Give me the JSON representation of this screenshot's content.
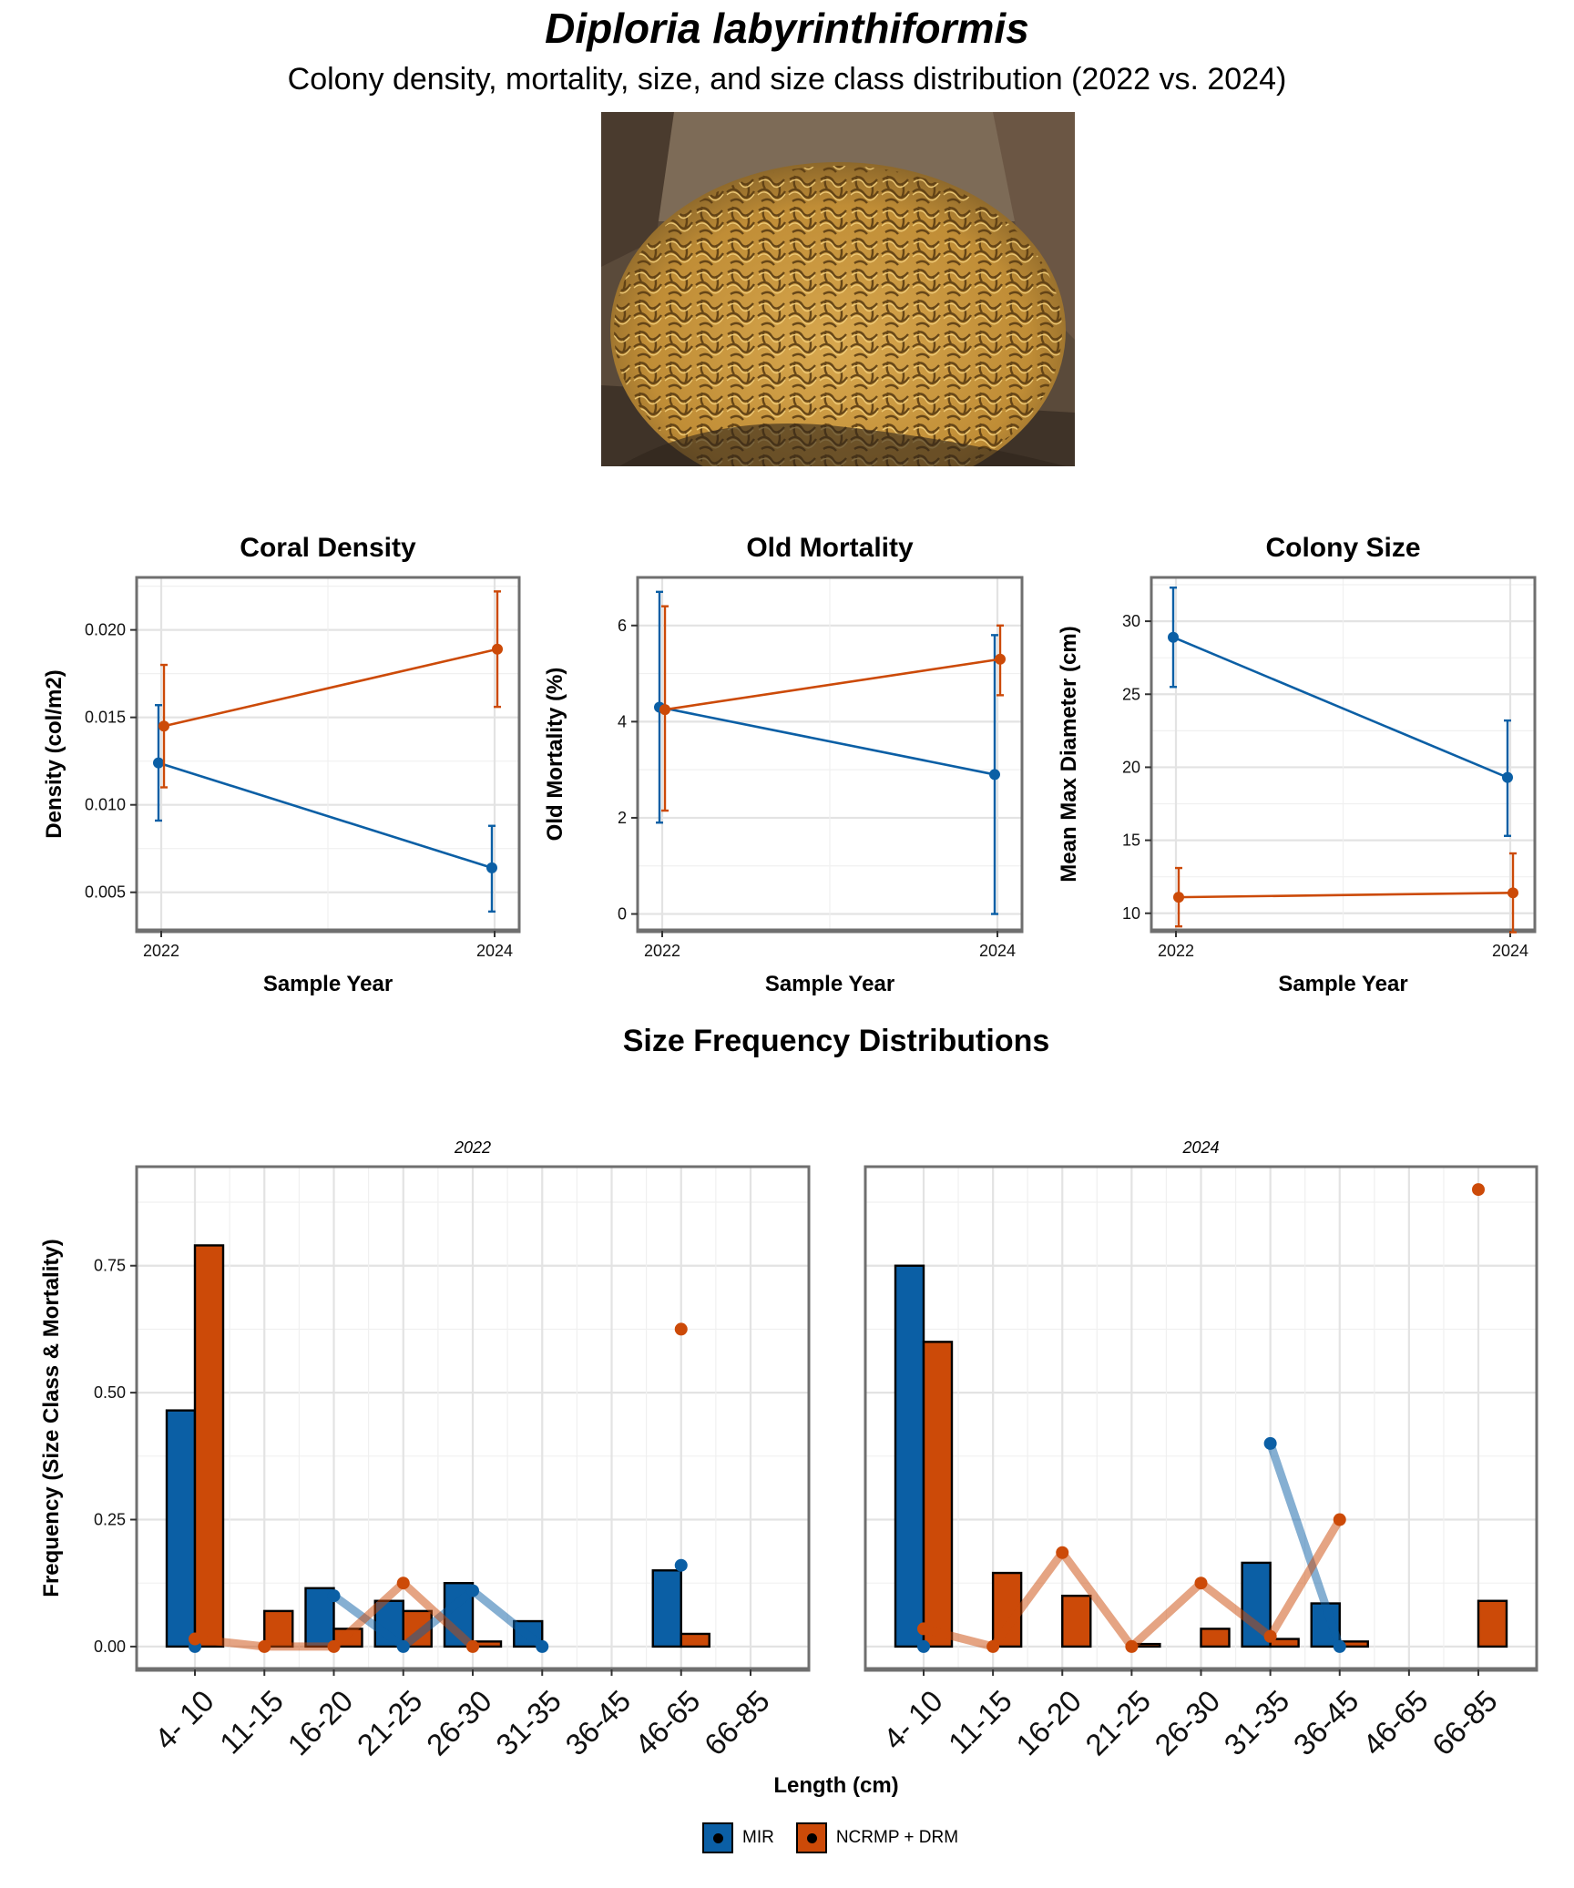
{
  "title": "Diploria labyrinthiformis",
  "subtitle": "Colony density, mortality, size, and size class distribution (2022 vs. 2024)",
  "section_title": "Size Frequency Distributions",
  "colors": {
    "MIR": "#0b5fa5",
    "NCRMP + DRM": "#cc4a08"
  },
  "legend": {
    "items": [
      {
        "label": "MIR",
        "color": "#0b5fa5"
      },
      {
        "label": "NCRMP + DRM",
        "color": "#cc4a08"
      }
    ]
  },
  "chart_data": [
    {
      "type": "line",
      "title": "Coral Density",
      "xlabel": "Sample Year",
      "ylabel": "Density (col/m2)",
      "x": [
        "2022",
        "2024"
      ],
      "ylim": [
        0.0028,
        0.023
      ],
      "yticks": [
        "0.005",
        "0.010",
        "0.015",
        "0.020"
      ],
      "ytick_values": [
        0.005,
        0.01,
        0.015,
        0.02
      ],
      "series": [
        {
          "name": "MIR",
          "values": [
            0.0124,
            0.0064
          ],
          "lower": [
            0.0091,
            0.0039
          ],
          "upper": [
            0.0157,
            0.0088
          ]
        },
        {
          "name": "NCRMP + DRM",
          "values": [
            0.0145,
            0.0189
          ],
          "lower": [
            0.011,
            0.0156
          ],
          "upper": [
            0.018,
            0.0222
          ]
        }
      ]
    },
    {
      "type": "line",
      "title": "Old Mortality",
      "xlabel": "Sample Year",
      "ylabel": "Old Mortality (%)",
      "x": [
        "2022",
        "2024"
      ],
      "ylim": [
        -0.35,
        7.0
      ],
      "yticks": [
        "0",
        "2",
        "4",
        "6"
      ],
      "ytick_values": [
        0,
        2,
        4,
        6
      ],
      "series": [
        {
          "name": "MIR",
          "values": [
            4.3,
            2.9
          ],
          "lower": [
            1.9,
            0.0
          ],
          "upper": [
            6.7,
            5.8
          ]
        },
        {
          "name": "NCRMP + DRM",
          "values": [
            4.25,
            5.3
          ],
          "lower": [
            2.15,
            4.55
          ],
          "upper": [
            6.4,
            6.0
          ]
        }
      ]
    },
    {
      "type": "line",
      "title": "Colony Size",
      "xlabel": "Sample Year",
      "ylabel": "Mean Max Diameter (cm)",
      "x": [
        "2022",
        "2024"
      ],
      "ylim": [
        8.8,
        33.0
      ],
      "yticks": [
        "10",
        "15",
        "20",
        "25",
        "30"
      ],
      "ytick_values": [
        10,
        15,
        20,
        25,
        30
      ],
      "series": [
        {
          "name": "MIR",
          "values": [
            28.9,
            19.3
          ],
          "lower": [
            25.5,
            15.3
          ],
          "upper": [
            32.3,
            23.2
          ]
        },
        {
          "name": "NCRMP + DRM",
          "values": [
            11.1,
            11.4
          ],
          "lower": [
            9.1,
            8.7
          ],
          "upper": [
            13.1,
            14.1
          ]
        }
      ]
    },
    {
      "type": "bar",
      "panel": "2022",
      "ylabel": "Frequency (Size Class & Mortality)",
      "xlabel": "Length (cm)",
      "categories": [
        "4- 10",
        "11-15",
        "16-20",
        "21-25",
        "26-30",
        "31-35",
        "36-45",
        "46-65",
        "66-85"
      ],
      "ylim": [
        -0.045,
        0.945
      ],
      "yticks": [
        "0.00",
        "0.25",
        "0.50",
        "0.75"
      ],
      "ytick_values": [
        0,
        0.25,
        0.5,
        0.75
      ],
      "series": [
        {
          "name": "MIR",
          "values": [
            0.465,
            0.0,
            0.115,
            0.09,
            0.125,
            0.05,
            0.0,
            0.15,
            0.0
          ],
          "mortality_points": [
            0.0,
            null,
            0.1,
            0.0,
            0.11,
            0.0,
            null,
            0.16,
            null
          ]
        },
        {
          "name": "NCRMP + DRM",
          "values": [
            0.79,
            0.07,
            0.035,
            0.07,
            0.01,
            0.0,
            0.0,
            0.025,
            0.0
          ],
          "mortality_points": [
            0.015,
            0.0,
            0.0,
            0.125,
            0.0,
            null,
            null,
            0.625,
            null
          ]
        }
      ]
    },
    {
      "type": "bar",
      "panel": "2024",
      "xlabel": "Length (cm)",
      "categories": [
        "4- 10",
        "11-15",
        "16-20",
        "21-25",
        "26-30",
        "31-35",
        "36-45",
        "46-65",
        "66-85"
      ],
      "ylim": [
        -0.045,
        0.945
      ],
      "yticks": [
        "0.00",
        "0.25",
        "0.50",
        "0.75"
      ],
      "ytick_values": [
        0,
        0.25,
        0.5,
        0.75
      ],
      "series": [
        {
          "name": "MIR",
          "values": [
            0.75,
            0.0,
            0.0,
            0.0,
            0.0,
            0.165,
            0.085,
            0.0,
            0.0
          ],
          "mortality_points": [
            0.0,
            null,
            null,
            null,
            null,
            0.4,
            0.0,
            null,
            null
          ]
        },
        {
          "name": "NCRMP + DRM",
          "values": [
            0.6,
            0.145,
            0.1,
            0.005,
            0.035,
            0.015,
            0.01,
            0.0,
            0.09
          ],
          "mortality_points": [
            0.035,
            0.0,
            0.185,
            0.0,
            0.125,
            0.02,
            0.25,
            null,
            0.9
          ]
        }
      ]
    }
  ]
}
